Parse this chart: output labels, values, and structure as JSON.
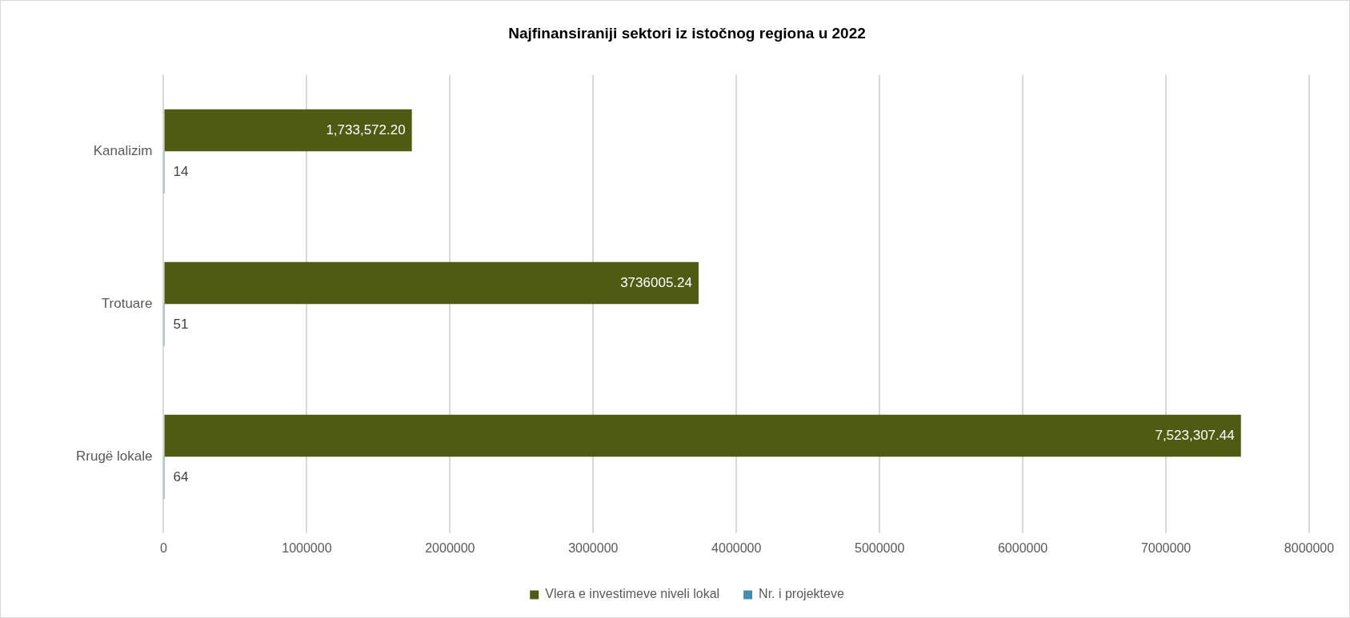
{
  "chart_data": {
    "type": "bar",
    "orientation": "horizontal",
    "title": "Najfinansiraniji sektori iz istočnog regiona u 2022",
    "categories": [
      "Kanalizim",
      "Trotuare",
      "Rrugë lokale"
    ],
    "series": [
      {
        "name": "Vlera e investimeve niveli lokal",
        "color": "#4f5a13",
        "values": [
          1733572.2,
          3736005.24,
          7523307.44
        ],
        "value_labels": [
          "1,733,572.20",
          "3736005.24",
          "7,523,307.44"
        ]
      },
      {
        "name": "Nr. i projekteve",
        "color": "#3f8fb5",
        "values": [
          14,
          51,
          64
        ],
        "value_labels": [
          "14",
          "51",
          "64"
        ]
      }
    ],
    "xlim": [
      0,
      8000000
    ],
    "xticks": [
      0,
      1000000,
      2000000,
      3000000,
      4000000,
      5000000,
      6000000,
      7000000,
      8000000
    ],
    "grid": "x",
    "legend": "bottom"
  }
}
